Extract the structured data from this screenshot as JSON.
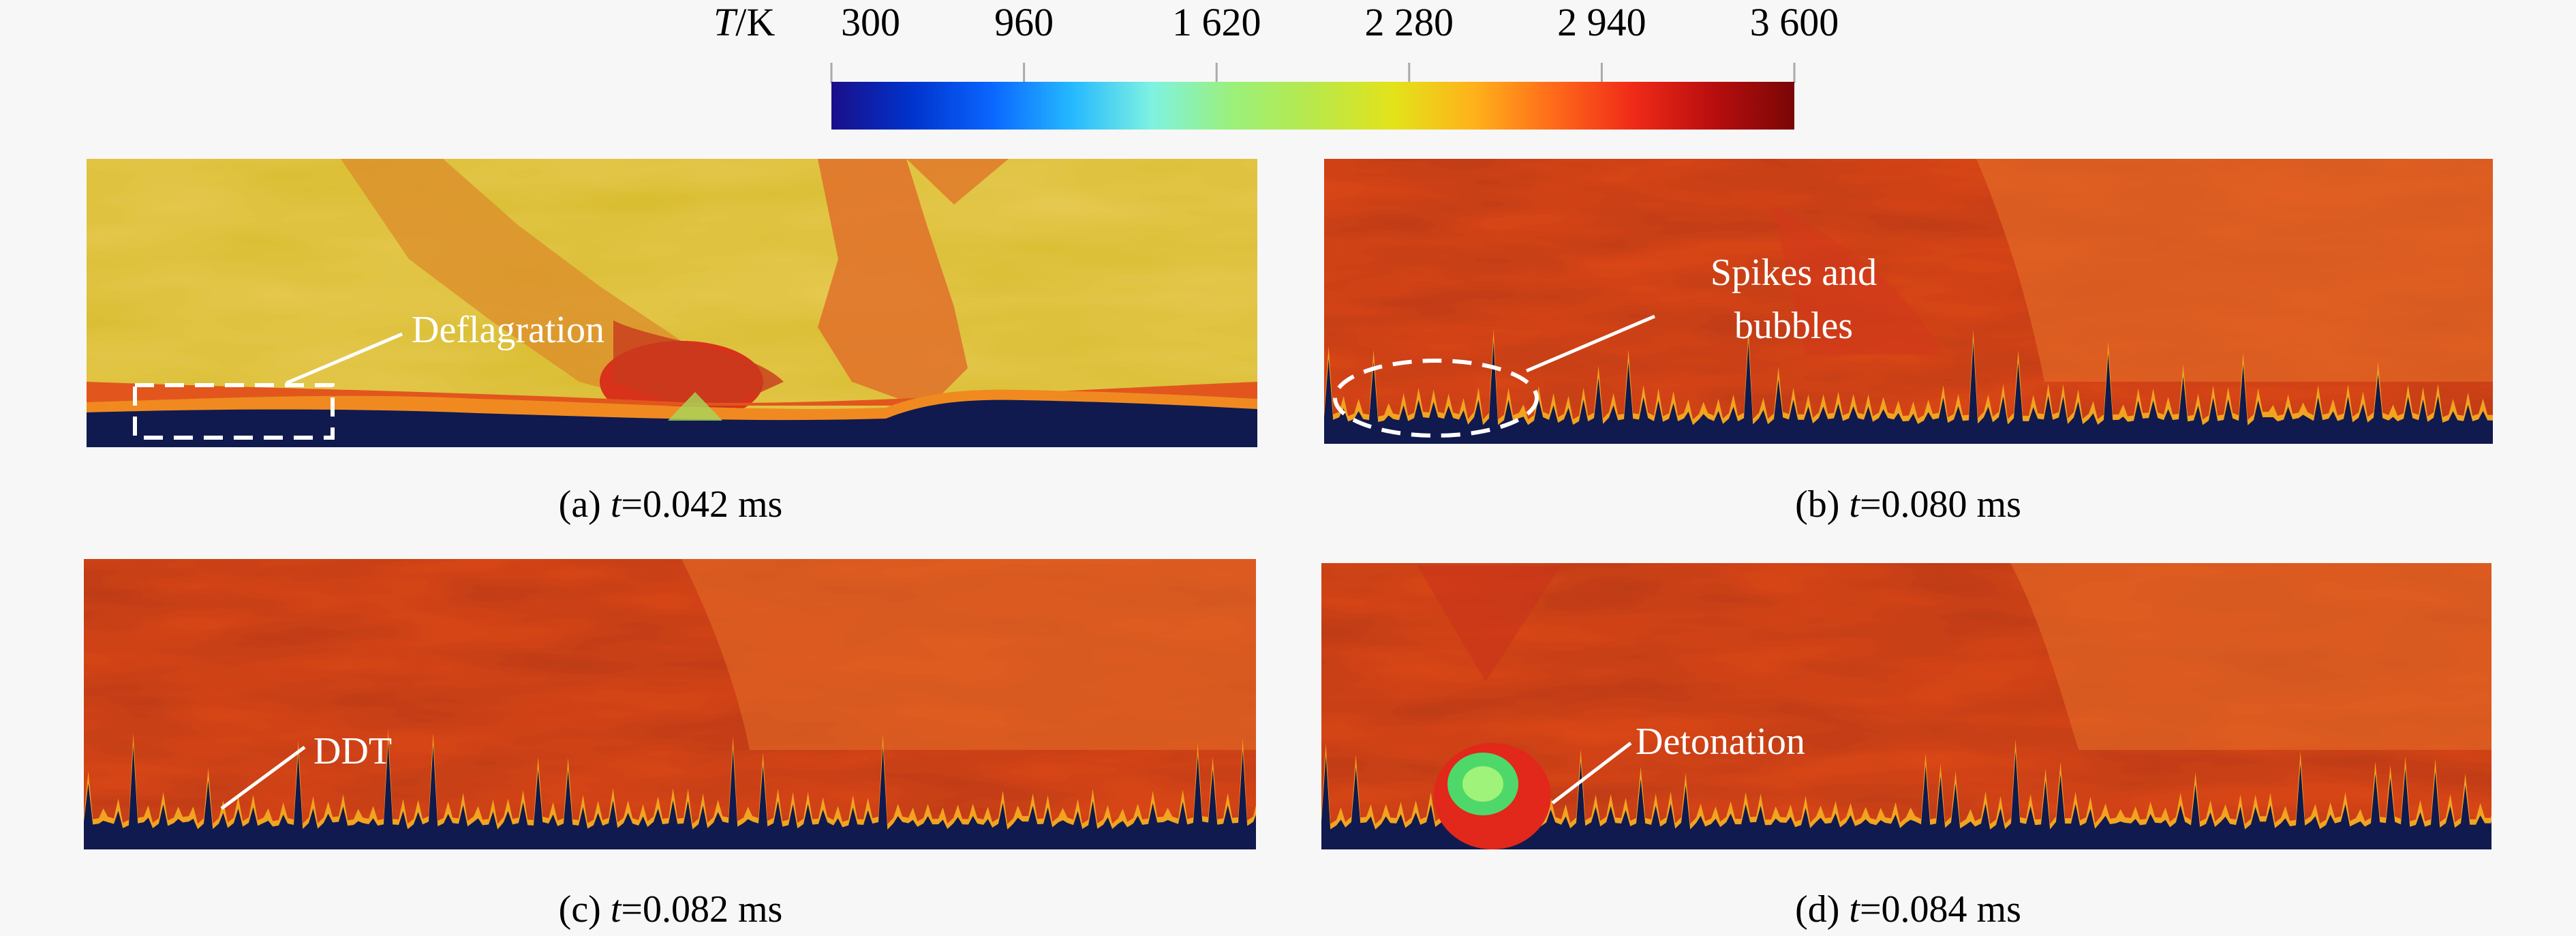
{
  "colorbar": {
    "variable": "T",
    "unit": "/K",
    "ticks": [
      "300",
      "960",
      "1 620",
      "2 280",
      "2 940",
      "3 600"
    ],
    "stops": [
      "#1a0f8a",
      "#0033cc",
      "#0a66ff",
      "#25b9ff",
      "#7ff2e0",
      "#9bf07a",
      "#b8e84a",
      "#e3e31a",
      "#ffb21a",
      "#ff6a1a",
      "#ef2a18",
      "#b80e0e",
      "#7a0606"
    ]
  },
  "panels": [
    {
      "id": "a",
      "caption_pre": "(a) ",
      "caption_var": "t",
      "caption_post": "=0.042 ms",
      "annotation": "Deflagration",
      "marker": "rectangle"
    },
    {
      "id": "b",
      "caption_pre": "(b) ",
      "caption_var": "t",
      "caption_post": "=0.080 ms",
      "annotation_line1": "Spikes and",
      "annotation_line2": "bubbles",
      "marker": "ellipse"
    },
    {
      "id": "c",
      "caption_pre": "(c) ",
      "caption_var": "t",
      "caption_post": "=0.082 ms",
      "annotation": "DDT"
    },
    {
      "id": "d",
      "caption_pre": "(d) ",
      "caption_var": "t",
      "caption_post": "=0.084 ms",
      "annotation": "Detonation"
    }
  ],
  "colors": {
    "unburnt": "#101a4e",
    "deflagration_field": "#d9bb2a",
    "burnt_field": "#e34a1c",
    "reaction_front": "#f08020",
    "annotation": "#ffffff"
  }
}
